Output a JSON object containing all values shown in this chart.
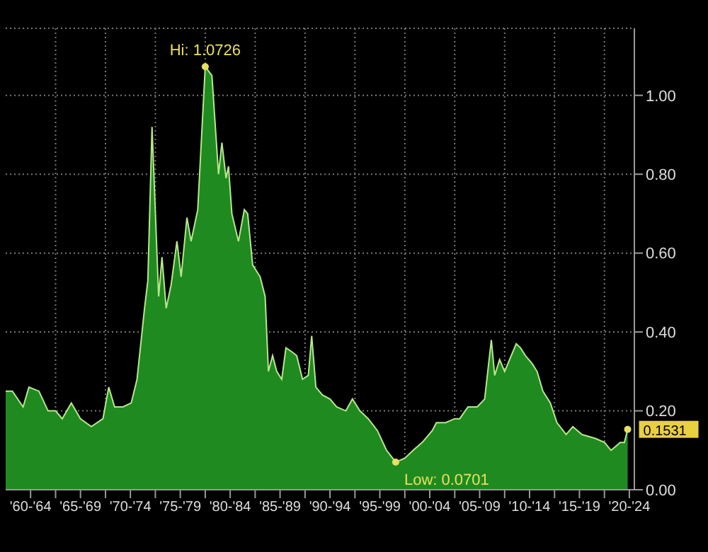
{
  "chart_data": {
    "type": "area",
    "x": [
      "1960-01",
      "1960-09",
      "1961-10",
      "1962-05",
      "1963-05",
      "1964-04",
      "1965-01",
      "1965-09",
      "1966-08",
      "1967-07",
      "1968-08",
      "1969-10",
      "1970-05",
      "1970-12",
      "1971-10",
      "1972-08",
      "1973-03",
      "1973-12",
      "1974-04",
      "1974-09",
      "1975-05",
      "1975-09",
      "1976-02",
      "1976-08",
      "1977-03",
      "1977-08",
      "1978-03",
      "1978-08",
      "1979-04",
      "1980-01",
      "1980-09",
      "1981-05",
      "1981-09",
      "1982-02",
      "1982-05",
      "1982-09",
      "1983-05",
      "1983-12",
      "1984-04",
      "1984-10",
      "1985-07",
      "1986-01",
      "1986-05",
      "1986-10",
      "1987-03",
      "1987-09",
      "1988-02",
      "1988-09",
      "1989-03",
      "1989-10",
      "1990-05",
      "1990-09",
      "1991-02",
      "1991-10",
      "1992-07",
      "1993-03",
      "1994-02",
      "1994-10",
      "1995-07",
      "1996-05",
      "1997-04",
      "1998-03",
      "1999-02",
      "2000-01",
      "2000-11",
      "2001-10",
      "2002-10",
      "2003-03",
      "2004-02",
      "2005-01",
      "2005-07",
      "2006-05",
      "2007-04",
      "2008-01",
      "2008-09",
      "2009-01",
      "2009-07",
      "2010-01",
      "2010-07",
      "2011-03",
      "2011-08",
      "2012-02",
      "2012-10",
      "2013-04",
      "2013-11",
      "2014-08",
      "2015-04",
      "2016-03",
      "2016-11",
      "2017-10",
      "2019-02",
      "2020-01",
      "2020-09",
      "2021-08",
      "2022-01",
      "2022-05"
    ],
    "series": [
      {
        "color": "#1f8a1f",
        "values": [
          0.25,
          0.25,
          0.21,
          0.26,
          0.25,
          0.2,
          0.2,
          0.18,
          0.22,
          0.18,
          0.16,
          0.18,
          0.26,
          0.21,
          0.21,
          0.22,
          0.28,
          0.46,
          0.53,
          0.92,
          0.49,
          0.59,
          0.46,
          0.52,
          0.63,
          0.54,
          0.69,
          0.63,
          0.71,
          1.0726,
          1.05,
          0.8,
          0.88,
          0.79,
          0.82,
          0.7,
          0.63,
          0.71,
          0.7,
          0.57,
          0.54,
          0.49,
          0.3,
          0.34,
          0.3,
          0.28,
          0.36,
          0.35,
          0.34,
          0.28,
          0.29,
          0.39,
          0.26,
          0.24,
          0.23,
          0.21,
          0.2,
          0.23,
          0.2,
          0.18,
          0.15,
          0.1,
          0.0701,
          0.08,
          0.1,
          0.12,
          0.15,
          0.17,
          0.17,
          0.18,
          0.18,
          0.21,
          0.21,
          0.23,
          0.38,
          0.29,
          0.33,
          0.3,
          0.33,
          0.37,
          0.36,
          0.34,
          0.32,
          0.3,
          0.25,
          0.22,
          0.17,
          0.14,
          0.16,
          0.14,
          0.13,
          0.12,
          0.1,
          0.12,
          0.12,
          0.1531
        ]
      }
    ],
    "xlim": [
      "1960-01",
      "2023-01"
    ],
    "xticks": [
      {
        "value": "1962-07",
        "label": "'60-'64"
      },
      {
        "value": "1965-01",
        "label": null
      },
      {
        "value": "1967-07",
        "label": "'65-'69"
      },
      {
        "value": "1970-01",
        "label": null
      },
      {
        "value": "1972-07",
        "label": "'70-'74"
      },
      {
        "value": "1975-01",
        "label": null
      },
      {
        "value": "1977-07",
        "label": "'75-'79"
      },
      {
        "value": "1980-01",
        "label": null
      },
      {
        "value": "1982-07",
        "label": "'80-'84"
      },
      {
        "value": "1985-01",
        "label": null
      },
      {
        "value": "1987-07",
        "label": "'85-'89"
      },
      {
        "value": "1990-01",
        "label": null
      },
      {
        "value": "1992-07",
        "label": "'90-'94"
      },
      {
        "value": "1995-01",
        "label": null
      },
      {
        "value": "1997-07",
        "label": "'95-'99"
      },
      {
        "value": "2000-01",
        "label": null
      },
      {
        "value": "2002-07",
        "label": "'00-'04"
      },
      {
        "value": "2005-01",
        "label": null
      },
      {
        "value": "2007-07",
        "label": "'05-'09"
      },
      {
        "value": "2010-01",
        "label": null
      },
      {
        "value": "2012-07",
        "label": "'10-'14"
      },
      {
        "value": "2015-01",
        "label": null
      },
      {
        "value": "2017-07",
        "label": "'15-'19"
      },
      {
        "value": "2020-01",
        "label": null
      },
      {
        "value": "2022-07",
        "label": "'20-'24"
      }
    ],
    "ylim": [
      0,
      1.17
    ],
    "yticks": [
      {
        "value": 0,
        "label": "0.00"
      },
      {
        "value": 0.2,
        "label": "0.20"
      },
      {
        "value": 0.4,
        "label": "0.40"
      },
      {
        "value": 0.6,
        "label": "0.60"
      },
      {
        "value": 0.8,
        "label": "0.80"
      },
      {
        "value": 1,
        "label": "1.00"
      }
    ],
    "grid": true,
    "annotations": [
      {
        "text": "Hi: 1.0726",
        "x": "1980-01",
        "y": 1.0726
      },
      {
        "text": "Low: 0.0701",
        "x": "1999-02",
        "y": 0.0701
      },
      {
        "text": "0.1531",
        "x": "2022-05",
        "y": 0.1531
      }
    ]
  }
}
